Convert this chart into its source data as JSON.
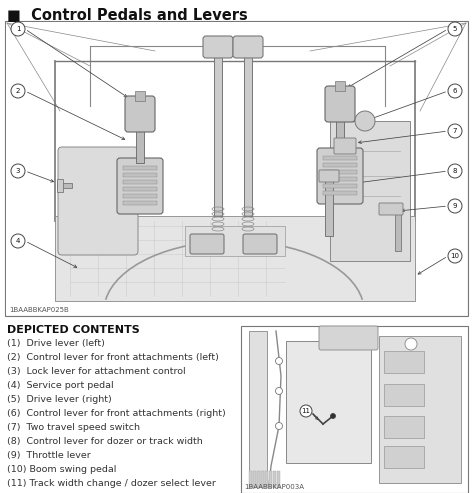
{
  "title": "Control Pedals and Levers",
  "title_marker": "■",
  "depicted_contents_title": "DEPICTED CONTENTS",
  "items": [
    "(1)  Drive lever (left)",
    "(2)  Control lever for front attachments (left)",
    "(3)  Lock lever for attachment control",
    "(4)  Service port pedal",
    "(5)  Drive lever (right)",
    "(6)  Control lever for front attachments (right)",
    "(7)  Two travel speed switch",
    "(8)  Control lever for dozer or track width",
    "(9)  Throttle lever",
    "(10) Boom swing pedal",
    "(11) Track width change / dozer select lever"
  ],
  "main_image_code": "1BAABBKAP025B",
  "small_image_code": "1BAABBKAP003A",
  "bg_color": "#ffffff",
  "line_color": "#555555",
  "text_color": "#333333",
  "title_fontsize": 10.5,
  "items_fontsize": 6.8,
  "depicted_fontsize": 8.0,
  "gray_fill": "#e8e8e8",
  "gray_mid": "#cccccc",
  "gray_dark": "#aaaaaa",
  "white": "#ffffff"
}
